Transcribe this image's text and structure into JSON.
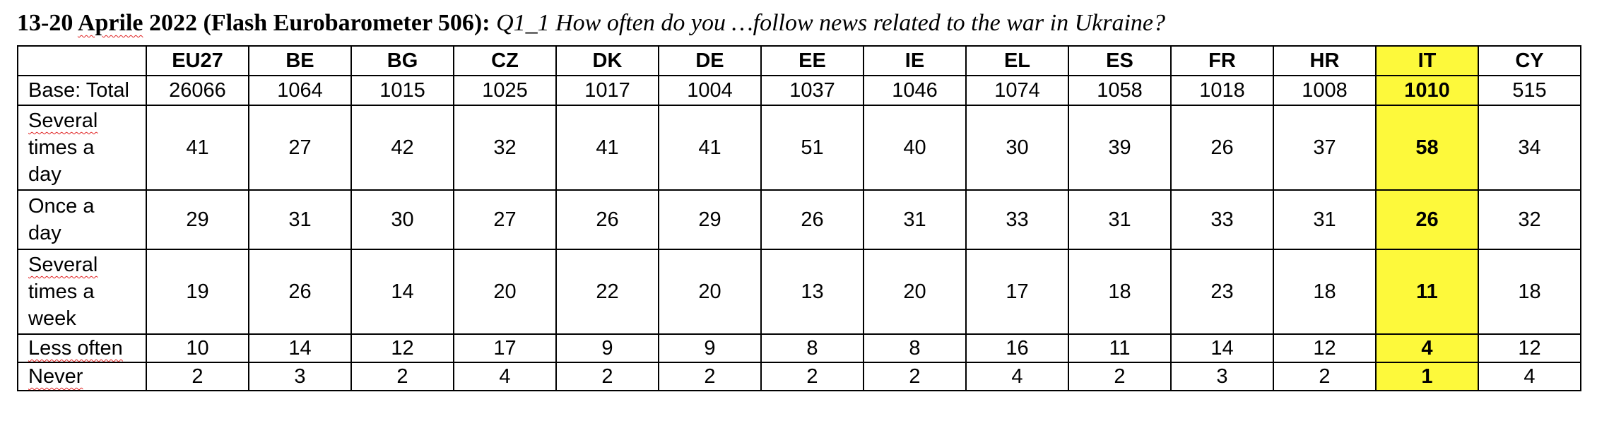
{
  "title": {
    "date_prefix": "13-20 ",
    "word_aprile": "Aprile",
    "date_suffix": " 2022 (Flash Eurobarometer 506):",
    "question": " Q1_1 How often do you …follow news related to the war in Ukraine?"
  },
  "table": {
    "columns": [
      "EU27",
      "BE",
      "BG",
      "CZ",
      "DK",
      "DE",
      "EE",
      "IE",
      "EL",
      "ES",
      "FR",
      "HR",
      "IT",
      "CY"
    ],
    "highlight_column": "IT",
    "highlight_color": "#fdf93b",
    "rows": [
      {
        "label_lines": [
          "Base: Total"
        ],
        "values": [
          "26066",
          "1064",
          "1015",
          "1025",
          "1017",
          "1004",
          "1037",
          "1046",
          "1074",
          "1058",
          "1018",
          "1008",
          "1010",
          "515"
        ]
      },
      {
        "label_lines": [
          "Several",
          "times a",
          "day"
        ],
        "values": [
          "41",
          "27",
          "42",
          "32",
          "41",
          "41",
          "51",
          "40",
          "30",
          "39",
          "26",
          "37",
          "58",
          "34"
        ]
      },
      {
        "label_lines": [
          "Once a",
          "day"
        ],
        "values": [
          "29",
          "31",
          "30",
          "27",
          "26",
          "29",
          "26",
          "31",
          "33",
          "31",
          "33",
          "31",
          "26",
          "32"
        ]
      },
      {
        "label_lines": [
          "Several",
          "times a",
          "week"
        ],
        "values": [
          "19",
          "26",
          "14",
          "20",
          "22",
          "20",
          "13",
          "20",
          "17",
          "18",
          "23",
          "18",
          "11",
          "18"
        ]
      },
      {
        "label_lines": [
          "Less often"
        ],
        "values": [
          "10",
          "14",
          "12",
          "17",
          "9",
          "9",
          "8",
          "8",
          "16",
          "11",
          "14",
          "12",
          "4",
          "12"
        ]
      },
      {
        "label_lines": [
          "Never"
        ],
        "values": [
          "2",
          "3",
          "2",
          "4",
          "2",
          "2",
          "2",
          "2",
          "4",
          "2",
          "3",
          "2",
          "1",
          "4"
        ]
      }
    ]
  }
}
